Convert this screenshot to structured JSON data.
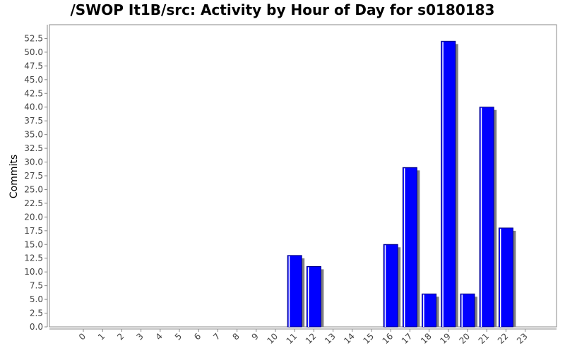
{
  "chart_data": {
    "type": "bar",
    "title": "/SWOP It1B/src: Activity by Hour of Day for s0180183",
    "xlabel": "",
    "ylabel": "Commits",
    "categories": [
      "0",
      "1",
      "2",
      "3",
      "4",
      "5",
      "6",
      "7",
      "8",
      "9",
      "10",
      "11",
      "12",
      "13",
      "14",
      "15",
      "16",
      "17",
      "18",
      "19",
      "20",
      "21",
      "22",
      "23"
    ],
    "values": [
      0,
      0,
      0,
      0,
      0,
      0,
      0,
      0,
      0,
      0,
      0,
      13,
      11,
      0,
      0,
      0,
      15,
      29,
      6,
      52,
      6,
      40,
      18,
      0
    ],
    "yticks": [
      "0.0",
      "2.5",
      "5.0",
      "7.5",
      "10.0",
      "12.5",
      "15.0",
      "17.5",
      "20.0",
      "22.5",
      "25.0",
      "27.5",
      "30.0",
      "32.5",
      "35.0",
      "37.5",
      "40.0",
      "42.5",
      "45.0",
      "47.5",
      "50.0",
      "52.5"
    ],
    "ylim": [
      0,
      55
    ],
    "grid": false,
    "colors": {
      "bar": "#0000ff",
      "bar_edge": "#000080",
      "shadow": "#808080",
      "axis": "#888888"
    }
  }
}
